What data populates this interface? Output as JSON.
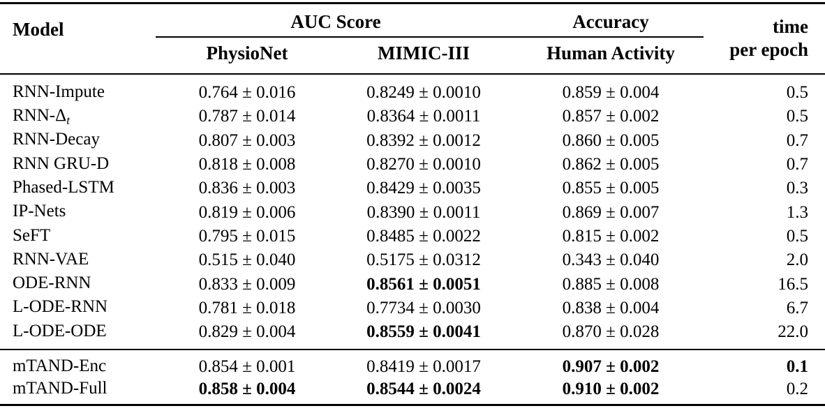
{
  "header": {
    "model": "Model",
    "auc_group": "AUC Score",
    "accuracy_group": "Accuracy",
    "time_line1": "time",
    "time_line2": "per epoch",
    "col_physionet": "PhysioNet",
    "col_mimic": "MIMIC-III",
    "col_activity": "Human Activity"
  },
  "colors": {
    "text": "#000000",
    "rule": "#000000",
    "background": "#ffffff"
  },
  "rows": [
    {
      "model": {
        "text": "RNN-Impute",
        "sub": ""
      },
      "physionet": {
        "text": "0.764 ± 0.016",
        "bold": false
      },
      "mimic": {
        "text": "0.8249 ± 0.0010",
        "bold": false
      },
      "activity": {
        "text": "0.859 ± 0.004",
        "bold": false
      },
      "time": {
        "text": "0.5",
        "bold": false
      }
    },
    {
      "model": {
        "text": "RNN-Δ",
        "sub": "t"
      },
      "physionet": {
        "text": "0.787 ± 0.014",
        "bold": false
      },
      "mimic": {
        "text": "0.8364 ± 0.0011",
        "bold": false
      },
      "activity": {
        "text": "0.857 ± 0.002",
        "bold": false
      },
      "time": {
        "text": "0.5",
        "bold": false
      }
    },
    {
      "model": {
        "text": "RNN-Decay",
        "sub": ""
      },
      "physionet": {
        "text": "0.807 ± 0.003",
        "bold": false
      },
      "mimic": {
        "text": "0.8392 ± 0.0012",
        "bold": false
      },
      "activity": {
        "text": "0.860 ± 0.005",
        "bold": false
      },
      "time": {
        "text": "0.7",
        "bold": false
      }
    },
    {
      "model": {
        "text": "RNN GRU-D",
        "sub": ""
      },
      "physionet": {
        "text": "0.818 ± 0.008",
        "bold": false
      },
      "mimic": {
        "text": "0.8270 ± 0.0010",
        "bold": false
      },
      "activity": {
        "text": "0.862 ± 0.005",
        "bold": false
      },
      "time": {
        "text": "0.7",
        "bold": false
      }
    },
    {
      "model": {
        "text": "Phased-LSTM",
        "sub": ""
      },
      "physionet": {
        "text": "0.836 ± 0.003",
        "bold": false
      },
      "mimic": {
        "text": "0.8429 ± 0.0035",
        "bold": false
      },
      "activity": {
        "text": "0.855 ± 0.005",
        "bold": false
      },
      "time": {
        "text": "0.3",
        "bold": false
      }
    },
    {
      "model": {
        "text": "IP-Nets",
        "sub": ""
      },
      "physionet": {
        "text": "0.819 ± 0.006",
        "bold": false
      },
      "mimic": {
        "text": "0.8390 ± 0.0011",
        "bold": false
      },
      "activity": {
        "text": "0.869 ± 0.007",
        "bold": false
      },
      "time": {
        "text": "1.3",
        "bold": false
      }
    },
    {
      "model": {
        "text": "SeFT",
        "sub": ""
      },
      "physionet": {
        "text": "0.795 ± 0.015",
        "bold": false
      },
      "mimic": {
        "text": "0.8485 ± 0.0022",
        "bold": false
      },
      "activity": {
        "text": "0.815 ± 0.002",
        "bold": false
      },
      "time": {
        "text": "0.5",
        "bold": false
      }
    },
    {
      "model": {
        "text": "RNN-VAE",
        "sub": ""
      },
      "physionet": {
        "text": "0.515 ± 0.040",
        "bold": false
      },
      "mimic": {
        "text": "0.5175 ± 0.0312",
        "bold": false
      },
      "activity": {
        "text": "0.343 ± 0.040",
        "bold": false
      },
      "time": {
        "text": "2.0",
        "bold": false
      }
    },
    {
      "model": {
        "text": "ODE-RNN",
        "sub": ""
      },
      "physionet": {
        "text": "0.833 ± 0.009",
        "bold": false
      },
      "mimic": {
        "text": "0.8561 ± 0.0051",
        "bold": true
      },
      "activity": {
        "text": "0.885 ± 0.008",
        "bold": false
      },
      "time": {
        "text": "16.5",
        "bold": false
      }
    },
    {
      "model": {
        "text": "L-ODE-RNN",
        "sub": ""
      },
      "physionet": {
        "text": "0.781 ± 0.018",
        "bold": false
      },
      "mimic": {
        "text": "0.7734 ± 0.0030",
        "bold": false
      },
      "activity": {
        "text": "0.838 ± 0.004",
        "bold": false
      },
      "time": {
        "text": "6.7",
        "bold": false
      }
    },
    {
      "model": {
        "text": "L-ODE-ODE",
        "sub": ""
      },
      "physionet": {
        "text": "0.829 ± 0.004",
        "bold": false
      },
      "mimic": {
        "text": "0.8559 ± 0.0041",
        "bold": true
      },
      "activity": {
        "text": "0.870 ± 0.028",
        "bold": false
      },
      "time": {
        "text": "22.0",
        "bold": false
      }
    },
    {
      "model": {
        "text": "mTAND-Enc",
        "sub": ""
      },
      "physionet": {
        "text": "0.854 ± 0.001",
        "bold": false
      },
      "mimic": {
        "text": "0.8419 ± 0.0017",
        "bold": false
      },
      "activity": {
        "text": "0.907 ± 0.002",
        "bold": true
      },
      "time": {
        "text": "0.1",
        "bold": true
      }
    },
    {
      "model": {
        "text": "mTAND-Full",
        "sub": ""
      },
      "physionet": {
        "text": "0.858 ± 0.004",
        "bold": true
      },
      "mimic": {
        "text": "0.8544 ± 0.0024",
        "bold": true
      },
      "activity": {
        "text": "0.910 ± 0.002",
        "bold": true
      },
      "time": {
        "text": "0.2",
        "bold": false
      }
    }
  ]
}
